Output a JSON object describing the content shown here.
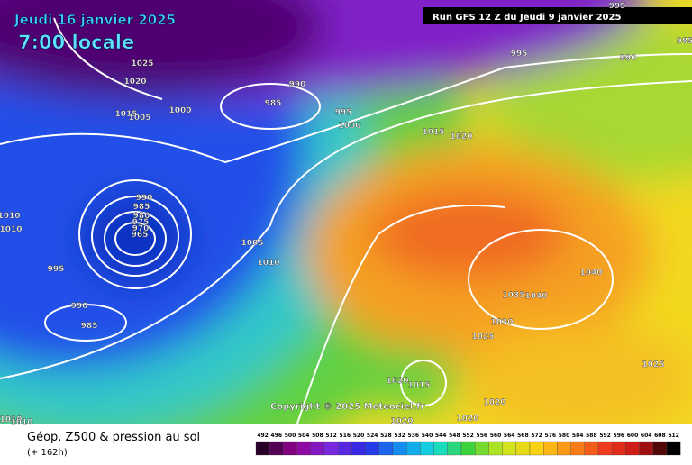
{
  "header": {
    "date": "Jeudi 16 janvier 2025",
    "time": "7:00 locale",
    "run": "Run GFS 12 Z du Jeudi 9 janvier 2025"
  },
  "copyright": "Copyright © 2025 Meteociel.fr",
  "footer": {
    "title": "Géop. Z500 & pression au sol",
    "lead": "(+ 162h)"
  },
  "scale": {
    "labels": [
      492,
      496,
      500,
      504,
      508,
      512,
      516,
      520,
      524,
      528,
      532,
      536,
      540,
      544,
      548,
      552,
      556,
      560,
      564,
      568,
      572,
      576,
      580,
      584,
      588,
      592,
      596,
      600,
      604,
      608,
      612
    ]
  },
  "isobars": [
    "1025",
    "1020",
    "1015",
    "1005",
    "1000",
    "990",
    "985",
    "995",
    "1000",
    "995",
    "995",
    "990",
    "985",
    "1015",
    "1020",
    "990",
    "985",
    "980",
    "975",
    "970",
    "965",
    "1010",
    "1010",
    "995",
    "1005",
    "1010",
    "990",
    "985",
    "1040",
    "1035",
    "1040",
    "1030",
    "1025",
    "1025",
    "1020",
    "1015",
    "1020",
    "1020",
    "1020",
    "1010",
    "1010"
  ]
}
